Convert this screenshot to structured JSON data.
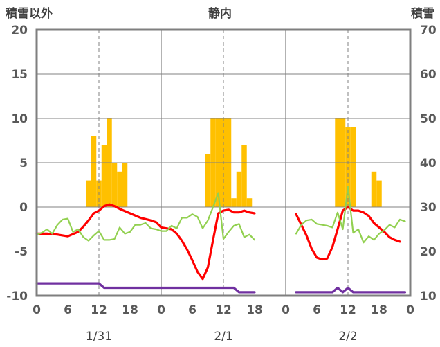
{
  "header": {
    "left_axis_label": "積雪以外",
    "title": "静内",
    "right_axis_label": "積雪"
  },
  "chart_data": {
    "type": "bar+line",
    "title": "静内",
    "ylabel_left": "積雪以外",
    "ylabel_right": "積雪",
    "ylim_left": [
      -10,
      20
    ],
    "ylim_right": [
      10,
      70
    ],
    "yticks_left": [
      "20",
      "15",
      "10",
      "5",
      "0",
      "-5",
      "-10"
    ],
    "yticks_right": [
      "70",
      "60",
      "50",
      "40",
      "30",
      "20",
      "10"
    ],
    "days": [
      {
        "label": "1/31",
        "xticks": [
          "0",
          "6",
          "12",
          "18"
        ]
      },
      {
        "label": "2/1",
        "xticks": [
          "0",
          "6",
          "12",
          "18"
        ]
      },
      {
        "label": "2/2",
        "xticks": [
          "0",
          "6",
          "12",
          "18",
          "0"
        ]
      }
    ],
    "colors": {
      "bars": "#ffc000",
      "red": "#ff0000",
      "green": "#92d050",
      "purple": "#7030a0",
      "frame": "#7f7f7f",
      "grid": "#808080"
    },
    "bars": [
      {
        "day": 0,
        "hour": 10,
        "value": 3
      },
      {
        "day": 0,
        "hour": 11,
        "value": 8
      },
      {
        "day": 0,
        "hour": 12,
        "value": 3
      },
      {
        "day": 0,
        "hour": 13,
        "value": 7
      },
      {
        "day": 0,
        "hour": 14,
        "value": 10
      },
      {
        "day": 0,
        "hour": 15,
        "value": 5
      },
      {
        "day": 0,
        "hour": 16,
        "value": 4
      },
      {
        "day": 0,
        "hour": 17,
        "value": 5
      },
      {
        "day": 1,
        "hour": 9,
        "value": 6
      },
      {
        "day": 1,
        "hour": 10,
        "value": 10
      },
      {
        "day": 1,
        "hour": 11,
        "value": 10
      },
      {
        "day": 1,
        "hour": 12,
        "value": 10
      },
      {
        "day": 1,
        "hour": 13,
        "value": 10
      },
      {
        "day": 1,
        "hour": 14,
        "value": 1
      },
      {
        "day": 1,
        "hour": 15,
        "value": 4
      },
      {
        "day": 1,
        "hour": 16,
        "value": 7
      },
      {
        "day": 1,
        "hour": 17,
        "value": 1
      },
      {
        "day": 2,
        "hour": 10,
        "value": 10
      },
      {
        "day": 2,
        "hour": 11,
        "value": 10
      },
      {
        "day": 2,
        "hour": 12,
        "value": 9
      },
      {
        "day": 2,
        "hour": 13,
        "value": 9
      },
      {
        "day": 2,
        "hour": 17,
        "value": 4
      },
      {
        "day": 2,
        "hour": 18,
        "value": 3
      }
    ],
    "series": [
      {
        "color_key": "red",
        "axis": "left",
        "points": [
          [
            0,
            0,
            -3.0
          ],
          [
            0,
            2,
            -3.0
          ],
          [
            0,
            4,
            -3.1
          ],
          [
            0,
            6,
            -3.3
          ],
          [
            0,
            8,
            -2.8
          ],
          [
            0,
            9,
            -2.2
          ],
          [
            0,
            10,
            -1.5
          ],
          [
            0,
            11,
            -0.7
          ],
          [
            0,
            12,
            -0.4
          ],
          [
            0,
            13,
            0.1
          ],
          [
            0,
            14,
            0.3
          ],
          [
            0,
            15,
            0.1
          ],
          [
            0,
            16,
            -0.2
          ],
          [
            0,
            18,
            -0.7
          ],
          [
            0,
            20,
            -1.2
          ],
          [
            0,
            22,
            -1.5
          ],
          [
            0,
            23,
            -1.7
          ],
          [
            1,
            0,
            -2.3
          ],
          [
            1,
            1,
            -2.4
          ],
          [
            1,
            2,
            -2.5
          ],
          [
            1,
            3,
            -3.0
          ],
          [
            1,
            4,
            -3.8
          ],
          [
            1,
            5,
            -4.8
          ],
          [
            1,
            6,
            -6.0
          ],
          [
            1,
            7,
            -7.3
          ],
          [
            1,
            8,
            -8.1
          ],
          [
            1,
            9,
            -6.8
          ],
          [
            1,
            10,
            -3.7
          ],
          [
            1,
            11,
            -0.7
          ],
          [
            1,
            12,
            -0.4
          ],
          [
            1,
            13,
            -0.3
          ],
          [
            1,
            14,
            -0.6
          ],
          [
            1,
            15,
            -0.6
          ],
          [
            1,
            16,
            -0.4
          ],
          [
            1,
            17,
            -0.6
          ],
          [
            1,
            18,
            -0.7
          ],
          [
            2,
            2,
            -0.8
          ],
          [
            2,
            3,
            -2.0
          ],
          [
            2,
            4,
            -3.2
          ],
          [
            2,
            5,
            -4.7
          ],
          [
            2,
            6,
            -5.7
          ],
          [
            2,
            7,
            -5.9
          ],
          [
            2,
            8,
            -5.8
          ],
          [
            2,
            9,
            -4.5
          ],
          [
            2,
            10,
            -2.5
          ],
          [
            2,
            11,
            -0.4
          ],
          [
            2,
            12,
            0.0
          ],
          [
            2,
            13,
            -0.4
          ],
          [
            2,
            14,
            -0.4
          ],
          [
            2,
            15,
            -0.6
          ],
          [
            2,
            16,
            -1.0
          ],
          [
            2,
            17,
            -1.8
          ],
          [
            2,
            18,
            -2.3
          ],
          [
            2,
            19,
            -2.8
          ],
          [
            2,
            20,
            -3.4
          ],
          [
            2,
            21,
            -3.7
          ],
          [
            2,
            22,
            -3.9
          ]
        ]
      },
      {
        "color_key": "green",
        "axis": "left",
        "points": [
          [
            0,
            0,
            -3.1
          ],
          [
            0,
            1,
            -2.9
          ],
          [
            0,
            2,
            -2.5
          ],
          [
            0,
            3,
            -3.0
          ],
          [
            0,
            4,
            -2.0
          ],
          [
            0,
            5,
            -1.4
          ],
          [
            0,
            6,
            -1.3
          ],
          [
            0,
            7,
            -2.8
          ],
          [
            0,
            8,
            -2.5
          ],
          [
            0,
            9,
            -3.4
          ],
          [
            0,
            10,
            -3.8
          ],
          [
            0,
            11,
            -3.2
          ],
          [
            0,
            12,
            -2.7
          ],
          [
            0,
            13,
            -3.7
          ],
          [
            0,
            14,
            -3.7
          ],
          [
            0,
            15,
            -3.6
          ],
          [
            0,
            16,
            -2.3
          ],
          [
            0,
            17,
            -3.0
          ],
          [
            0,
            18,
            -2.8
          ],
          [
            0,
            19,
            -2.0
          ],
          [
            0,
            20,
            -2.0
          ],
          [
            0,
            21,
            -1.8
          ],
          [
            0,
            22,
            -2.4
          ],
          [
            0,
            23,
            -2.5
          ],
          [
            1,
            0,
            -2.7
          ],
          [
            1,
            1,
            -2.7
          ],
          [
            1,
            2,
            -2.1
          ],
          [
            1,
            3,
            -2.4
          ],
          [
            1,
            4,
            -1.2
          ],
          [
            1,
            5,
            -1.2
          ],
          [
            1,
            6,
            -0.8
          ],
          [
            1,
            7,
            -1.1
          ],
          [
            1,
            8,
            -2.4
          ],
          [
            1,
            9,
            -1.5
          ],
          [
            1,
            10,
            0.0
          ],
          [
            1,
            11,
            1.6
          ],
          [
            1,
            12,
            -3.6
          ],
          [
            1,
            13,
            -2.8
          ],
          [
            1,
            14,
            -2.1
          ],
          [
            1,
            15,
            -1.9
          ],
          [
            1,
            16,
            -3.4
          ],
          [
            1,
            17,
            -3.1
          ],
          [
            1,
            18,
            -3.7
          ],
          [
            2,
            2,
            -3.0
          ],
          [
            2,
            3,
            -2.0
          ],
          [
            2,
            4,
            -1.5
          ],
          [
            2,
            5,
            -1.4
          ],
          [
            2,
            6,
            -1.9
          ],
          [
            2,
            7,
            -2.0
          ],
          [
            2,
            8,
            -2.1
          ],
          [
            2,
            9,
            -2.3
          ],
          [
            2,
            10,
            -0.6
          ],
          [
            2,
            11,
            -2.5
          ],
          [
            2,
            12,
            2.3
          ],
          [
            2,
            13,
            -2.9
          ],
          [
            2,
            14,
            -2.5
          ],
          [
            2,
            15,
            -4.0
          ],
          [
            2,
            16,
            -3.3
          ],
          [
            2,
            17,
            -3.7
          ],
          [
            2,
            18,
            -3.0
          ],
          [
            2,
            19,
            -2.6
          ],
          [
            2,
            20,
            -2.0
          ],
          [
            2,
            21,
            -2.3
          ],
          [
            2,
            22,
            -1.4
          ],
          [
            2,
            23,
            -1.6
          ]
        ]
      },
      {
        "color_key": "purple",
        "axis": "left",
        "points": [
          [
            0,
            0,
            -8.6
          ],
          [
            0,
            6,
            -8.6
          ],
          [
            0,
            12,
            -8.6
          ],
          [
            0,
            13,
            -9.1
          ],
          [
            0,
            18,
            -9.1
          ],
          [
            0,
            23,
            -9.1
          ],
          [
            1,
            0,
            -9.1
          ],
          [
            1,
            12,
            -9.1
          ],
          [
            1,
            14,
            -9.1
          ],
          [
            1,
            15,
            -9.6
          ],
          [
            1,
            18,
            -9.6
          ],
          [
            2,
            2,
            -9.6
          ],
          [
            2,
            8,
            -9.6
          ],
          [
            2,
            9,
            -9.6
          ],
          [
            2,
            10,
            -9.1
          ],
          [
            2,
            11,
            -9.6
          ],
          [
            2,
            12,
            -9.1
          ],
          [
            2,
            13,
            -9.6
          ],
          [
            2,
            18,
            -9.6
          ],
          [
            2,
            23,
            -9.6
          ]
        ]
      }
    ]
  }
}
